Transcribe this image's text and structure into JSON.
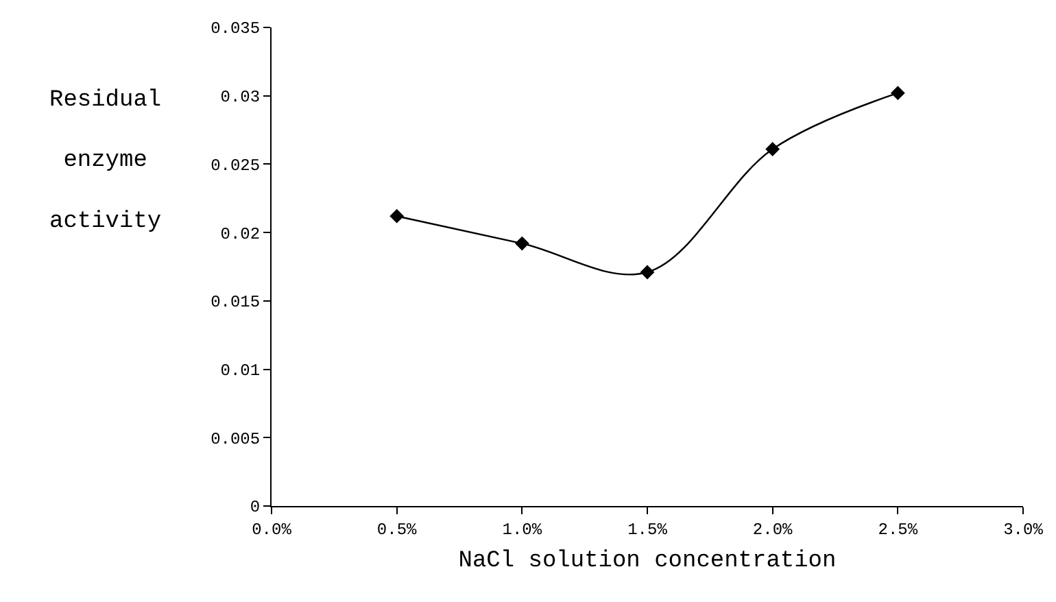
{
  "chart_data": {
    "type": "line",
    "xlabel": "NaCl solution concentration",
    "ylabel": "Residual enzyme activity",
    "x": [
      0.5,
      1.0,
      1.5,
      2.0,
      2.5
    ],
    "series": [
      {
        "color": "#000000",
        "values": [
          0.0212,
          0.0192,
          0.0171,
          0.0261,
          0.0302
        ]
      }
    ],
    "xlim": [
      0,
      3
    ],
    "xticks": [
      {
        "value": 0,
        "label": "0.0%"
      },
      {
        "value": 0.5,
        "label": "0.5%"
      },
      {
        "value": 1,
        "label": "1.0%"
      },
      {
        "value": 1.5,
        "label": "1.5%"
      },
      {
        "value": 2,
        "label": "2.0%"
      },
      {
        "value": 2.5,
        "label": "2.5%"
      },
      {
        "value": 3,
        "label": "3.0%"
      }
    ],
    "ylim": [
      0,
      0.035
    ],
    "yticks": [
      0,
      0.005,
      0.01,
      0.015,
      0.02,
      0.025,
      0.03,
      0.035
    ],
    "grid": false,
    "marker": "diamond",
    "line_style": "solid"
  }
}
